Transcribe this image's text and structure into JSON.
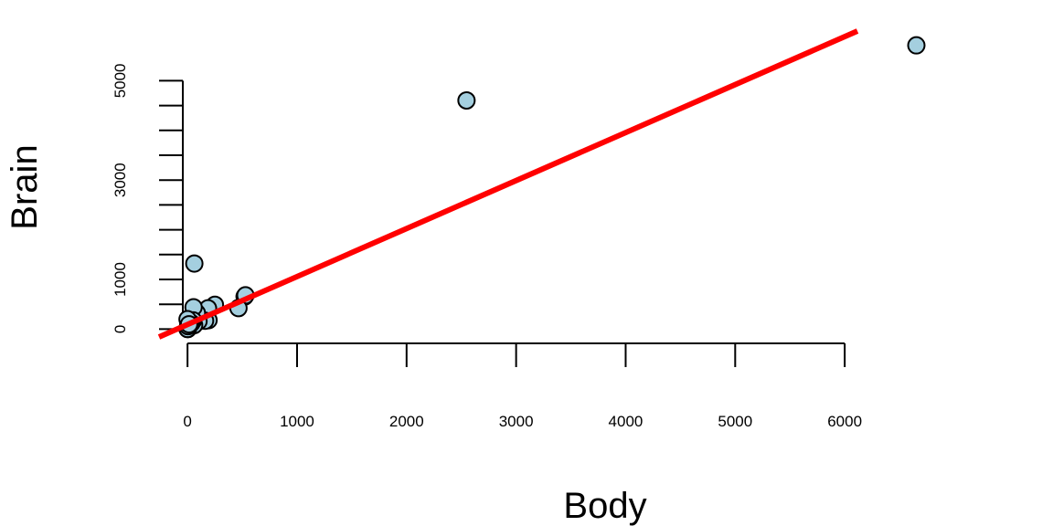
{
  "chart_data": {
    "type": "scatter",
    "title": "",
    "xlabel": "Body",
    "ylabel": "Brain",
    "xlim": [
      -260,
      6800
    ],
    "ylim": [
      -250,
      6000
    ],
    "x_ticks": [
      0,
      1000,
      2000,
      3000,
      4000,
      5000,
      6000
    ],
    "x_tick_labels": [
      "0",
      "1000",
      "2000",
      "3000",
      "4000",
      "5000",
      "6000"
    ],
    "y_ticks": [
      0,
      500,
      1000,
      1500,
      2000,
      2500,
      3000,
      3500,
      4000,
      4500,
      5000
    ],
    "y_tick_labels": [
      "0",
      "",
      "1000",
      "",
      "",
      "",
      "3000",
      "",
      "",
      "",
      "5000"
    ],
    "grid": false,
    "points": [
      {
        "x": 6654,
        "y": 5712
      },
      {
        "x": 2547,
        "y": 4603
      },
      {
        "x": 62,
        "y": 1320
      },
      {
        "x": 521,
        "y": 655
      },
      {
        "x": 529,
        "y": 680
      },
      {
        "x": 465,
        "y": 423
      },
      {
        "x": 250,
        "y": 490
      },
      {
        "x": 192,
        "y": 180
      },
      {
        "x": 187,
        "y": 419
      },
      {
        "x": 160,
        "y": 169
      },
      {
        "x": 100,
        "y": 157
      },
      {
        "x": 85,
        "y": 325
      },
      {
        "x": 60,
        "y": 81
      },
      {
        "x": 55,
        "y": 440
      },
      {
        "x": 52,
        "y": 175
      },
      {
        "x": 36,
        "y": 119
      },
      {
        "x": 27,
        "y": 115
      },
      {
        "x": 10,
        "y": 115
      },
      {
        "x": 6,
        "y": 50
      },
      {
        "x": 3.5,
        "y": 3.9
      },
      {
        "x": 3.3,
        "y": 25.6
      },
      {
        "x": 2.5,
        "y": 12.1
      },
      {
        "x": 1.4,
        "y": 12.5
      },
      {
        "x": 1.0,
        "y": 6.6
      },
      {
        "x": 0.9,
        "y": 2.6
      },
      {
        "x": 0.5,
        "y": 10
      },
      {
        "x": 0.1,
        "y": 4
      },
      {
        "x": 0,
        "y": 200
      },
      {
        "x": 5,
        "y": 60
      },
      {
        "x": 14,
        "y": 98
      }
    ],
    "point_color": "#a4cfdf",
    "point_edge_color": "#000000",
    "fit_line": {
      "intercept": 92,
      "slope": 0.966,
      "color": "#ff0000"
    }
  }
}
